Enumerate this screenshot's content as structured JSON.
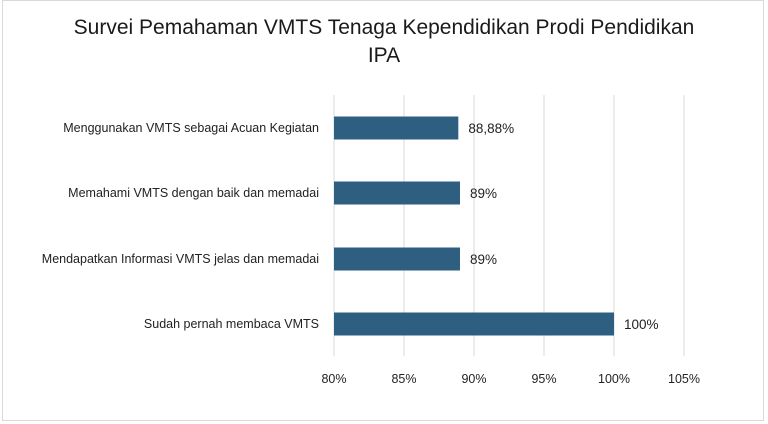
{
  "chart_data": {
    "type": "bar",
    "orientation": "horizontal",
    "title_line1": "Survei Pemahaman VMTS Tenaga Kependidikan Prodi Pendidikan",
    "title_line2": "IPA",
    "categories": [
      "Menggunakan VMTS sebagai Acuan Kegiatan",
      "Memahami VMTS dengan baik dan memadai",
      "Mendapatkan Informasi VMTS jelas dan memadai",
      "Sudah pernah membaca VMTS"
    ],
    "values": [
      88.88,
      89,
      89,
      100
    ],
    "data_labels": [
      "88,88%",
      "89%",
      "89%",
      "100%"
    ],
    "xlim": [
      80,
      105
    ],
    "ticks": [
      80,
      85,
      90,
      95,
      100,
      105
    ],
    "tick_labels": [
      "80%",
      "85%",
      "90%",
      "95%",
      "100%",
      "105%"
    ],
    "grid": true,
    "bar_color": "#2e5f80",
    "grid_color": "#d9d9d9"
  }
}
